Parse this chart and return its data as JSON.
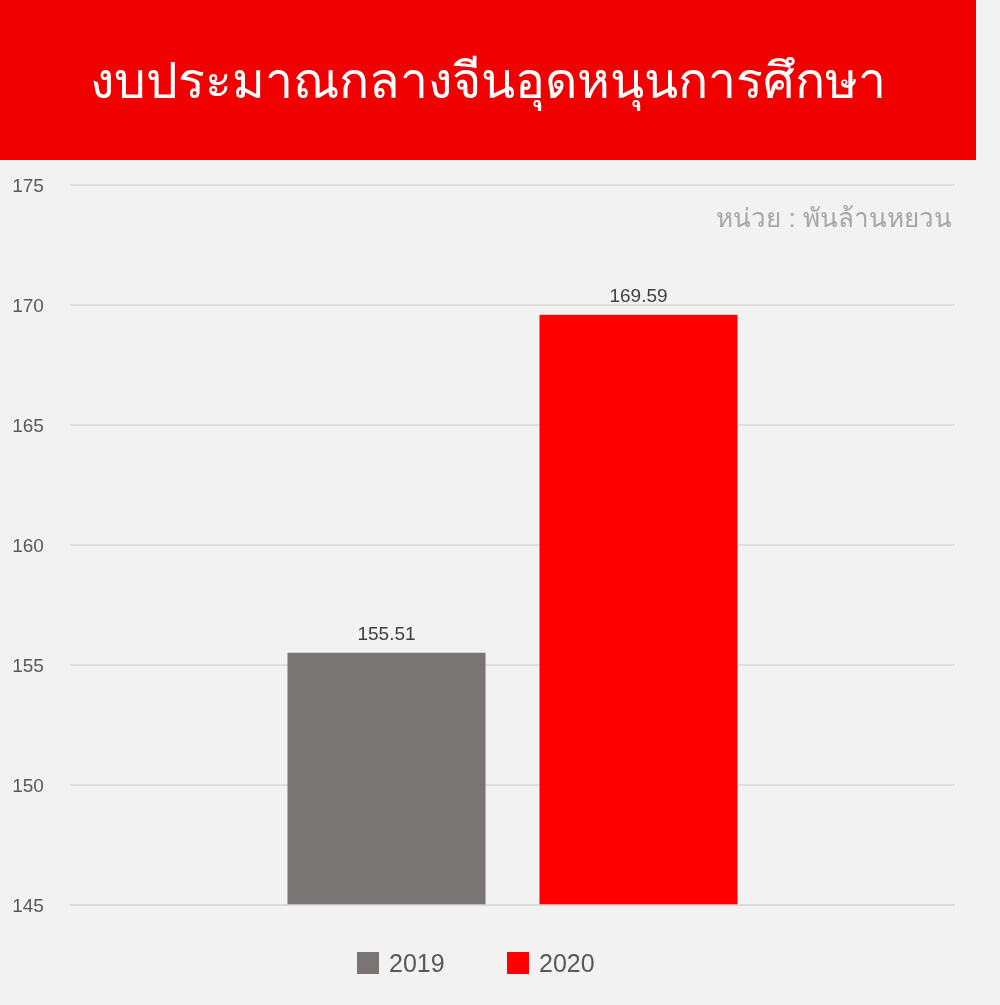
{
  "chart_data": {
    "type": "bar",
    "title": "งบประมาณกลางจีนอุดหนุนการศึกษา",
    "annotations": [
      "หน่วย : พันล้านหยวน"
    ],
    "categories": [
      null
    ],
    "series": [
      {
        "name": "2019",
        "color": "#797574",
        "values": [
          155.51
        ]
      },
      {
        "name": "2020",
        "color": "#ff0000",
        "values": [
          169.59
        ]
      }
    ],
    "ylim": [
      145,
      175
    ],
    "yticks": [
      145,
      150,
      155,
      160,
      165,
      170,
      175
    ],
    "grid": "y",
    "legend": "bottom",
    "data_labels": true
  }
}
